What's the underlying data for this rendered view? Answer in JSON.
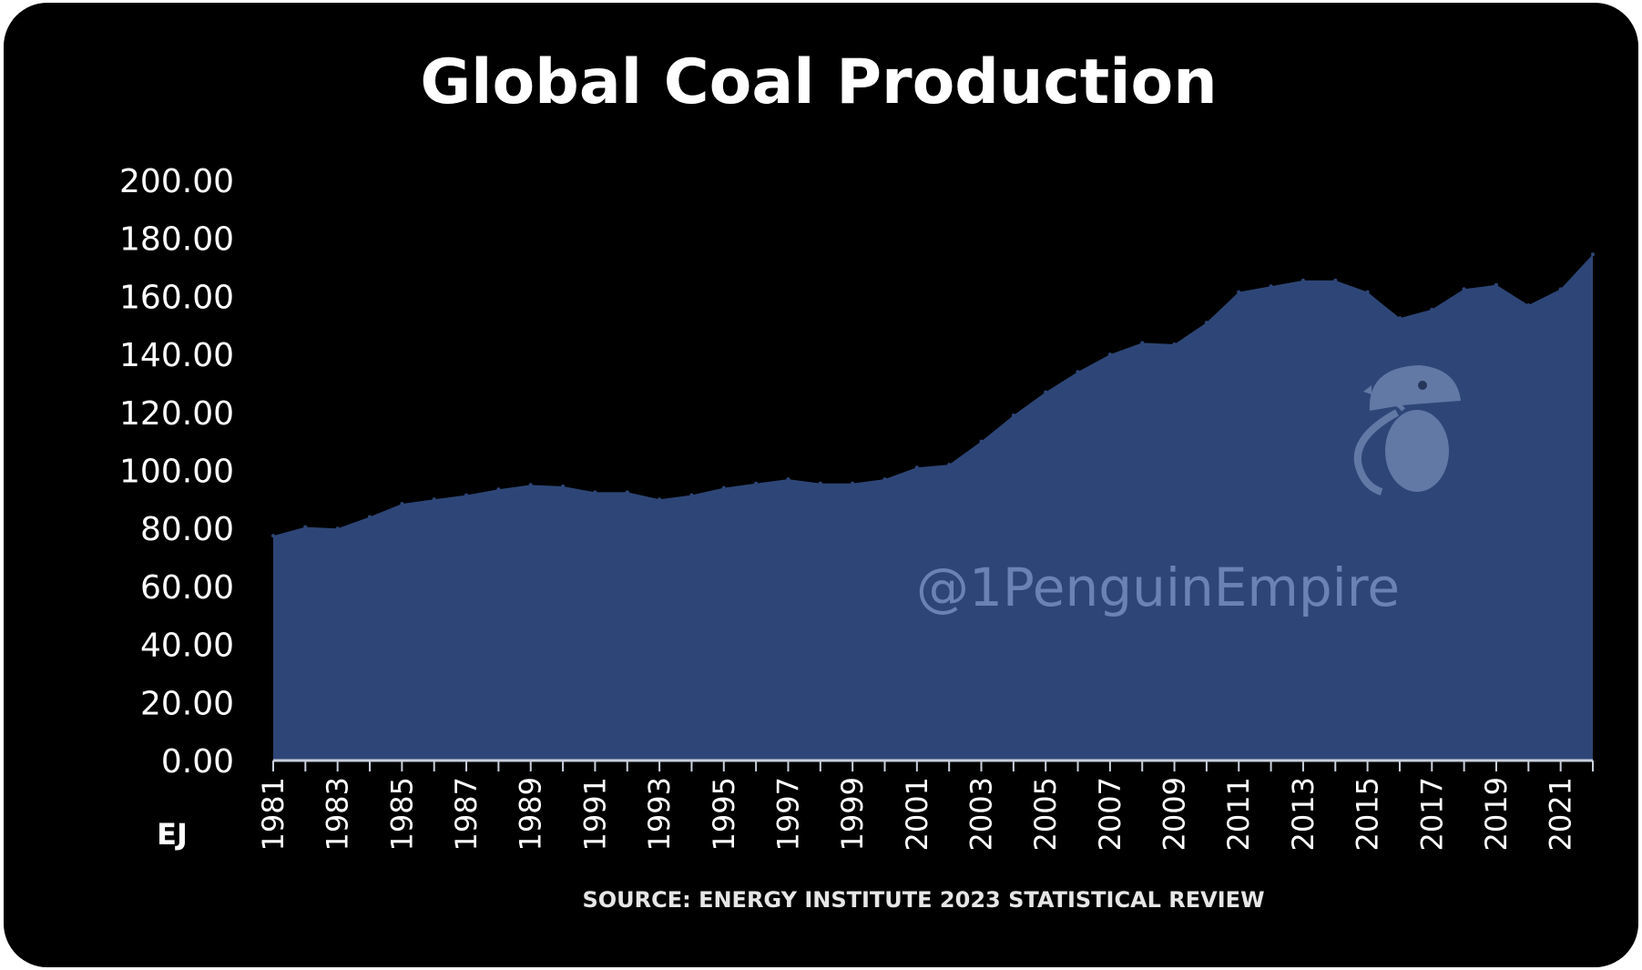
{
  "chart_data": {
    "type": "area",
    "title": "Global Coal Production",
    "ylabel": "EJ",
    "xlabel": "",
    "source": "SOURCE: ENERGY INSTITUTE 2023 STATISTICAL REVIEW",
    "ylim": [
      0,
      200
    ],
    "yticks": [
      "0.00",
      "20.00",
      "40.00",
      "60.00",
      "80.00",
      "100.00",
      "120.00",
      "140.00",
      "160.00",
      "180.00",
      "200.00"
    ],
    "xtick_labels": [
      "1981",
      "1983",
      "1985",
      "1987",
      "1989",
      "1991",
      "1993",
      "1995",
      "1997",
      "1999",
      "2001",
      "2003",
      "2005",
      "2007",
      "2009",
      "2011",
      "2013",
      "2015",
      "2017",
      "2019",
      "2021"
    ],
    "legend": "none",
    "grid": false,
    "fill_color": "#2e4677",
    "axis_color": "#c9d0dc",
    "x": [
      1981,
      1982,
      1983,
      1984,
      1985,
      1986,
      1987,
      1988,
      1989,
      1990,
      1991,
      1992,
      1993,
      1994,
      1995,
      1996,
      1997,
      1998,
      1999,
      2000,
      2001,
      2002,
      2003,
      2004,
      2005,
      2006,
      2007,
      2008,
      2009,
      2010,
      2011,
      2012,
      2013,
      2014,
      2015,
      2016,
      2017,
      2018,
      2019,
      2020,
      2021,
      2022
    ],
    "values": [
      77.5,
      80.5,
      80.0,
      84.0,
      88.5,
      90.0,
      91.5,
      93.5,
      95.0,
      94.5,
      92.5,
      92.5,
      90.0,
      91.5,
      94.0,
      95.5,
      97.0,
      95.5,
      95.5,
      97.0,
      101.0,
      102.0,
      110.0,
      119.0,
      127.0,
      134.0,
      140.0,
      144.0,
      143.5,
      151.0,
      161.5,
      163.5,
      165.5,
      165.5,
      161.5,
      152.5,
      155.5,
      162.5,
      164.0,
      157.0,
      162.5,
      174.5
    ]
  },
  "watermark": {
    "handle": "@1PenguinEmpire",
    "icon": "penguin-logo-icon"
  }
}
